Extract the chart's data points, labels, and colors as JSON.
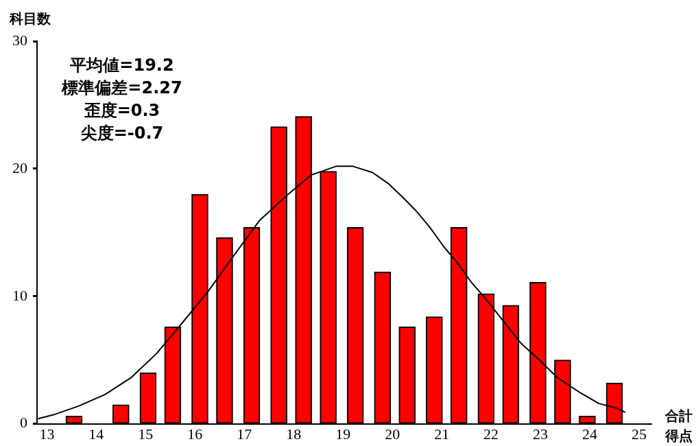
{
  "chart_data": {
    "type": "bar",
    "ylabel": "科目数",
    "xlabel": "合計得点",
    "annotations": [
      "平均値=19.2",
      "標準偏差=2.27",
      "歪度=0.3",
      "尖度=-0.7"
    ],
    "xlim": [
      12.8,
      25.25
    ],
    "xticks": [
      13,
      14,
      15,
      16,
      17,
      18,
      19,
      20,
      21,
      22,
      23,
      24,
      25
    ],
    "ylim": [
      0,
      30
    ],
    "yticks": [
      0,
      10,
      20,
      30
    ],
    "grid": false,
    "legend": false,
    "marker": "none",
    "series": [
      {
        "color": "#ff0000",
        "x": [
          13.55,
          14.5,
          15.05,
          15.55,
          16.1,
          16.6,
          17.15,
          17.7,
          18.2,
          18.7,
          19.25,
          19.8,
          20.3,
          20.85,
          21.35,
          21.9,
          22.4,
          22.95,
          23.45,
          23.95,
          24.5
        ],
        "values": [
          0.6,
          1.5,
          4.0,
          7.6,
          18.0,
          14.6,
          15.4,
          23.3,
          24.1,
          19.8,
          15.4,
          11.9,
          7.6,
          8.4,
          15.4,
          10.2,
          9.3,
          11.1,
          5.0,
          0.6,
          3.2
        ]
      },
      {
        "type": "line",
        "color": "#000000",
        "x": [
          12.82,
          13.13,
          13.65,
          14.18,
          14.7,
          15.22,
          15.74,
          16.27,
          16.79,
          17.3,
          17.83,
          18.35,
          18.87,
          19.19,
          19.6,
          19.93,
          20.2,
          20.48,
          20.76,
          21.04,
          21.32,
          21.6,
          21.87,
          22.24,
          22.61,
          22.98,
          23.35,
          23.82,
          24.18,
          24.56,
          24.72
        ],
        "values": [
          0.4,
          0.7,
          1.4,
          2.3,
          3.6,
          5.5,
          7.9,
          10.4,
          13.2,
          15.9,
          17.8,
          19.5,
          20.2,
          20.2,
          19.7,
          18.8,
          17.8,
          16.7,
          15.4,
          13.9,
          12.6,
          11.1,
          9.9,
          8.1,
          6.3,
          5.0,
          3.6,
          2.4,
          1.6,
          1.2,
          0.9
        ]
      }
    ]
  }
}
